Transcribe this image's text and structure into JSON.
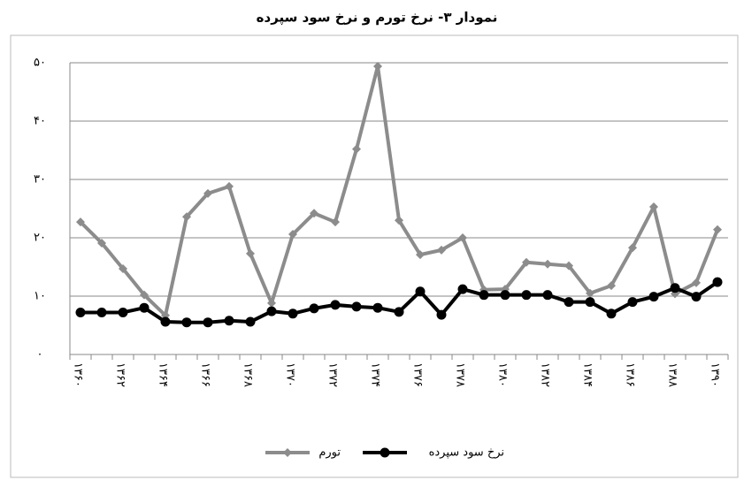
{
  "chart_data": {
    "type": "line",
    "title": "نمودار ۳- نرخ تورم و نرخ سود سپرده",
    "categories": [
      "۱۳۶۰",
      null,
      "۱۳۶۲",
      null,
      "۱۳۶۴",
      null,
      "۱۳۶۶",
      null,
      "۱۳۶۸",
      null,
      "۱۳۷۰",
      null,
      "۱۳۷۲",
      null,
      "۱۳۷۴",
      null,
      "۱۳۷۶",
      null,
      "۱۳۷۸",
      null,
      "۱۳۸۰",
      null,
      "۱۳۸۲",
      null,
      "۱۳۸۴",
      null,
      "۱۳۸۶",
      null,
      "۱۳۸۸",
      null,
      "۱۳۹۰"
    ],
    "series": [
      {
        "name": "تورم",
        "color": "#8c8c8c",
        "marker": "diamond",
        "values": [
          22.7,
          19.1,
          14.7,
          10.2,
          6.7,
          23.6,
          27.6,
          28.8,
          17.3,
          8.8,
          20.6,
          24.2,
          22.7,
          35.2,
          49.4,
          23.0,
          17.1,
          17.9,
          20.0,
          11.1,
          11.2,
          15.8,
          15.5,
          15.2,
          10.5,
          11.8,
          18.3,
          25.3,
          10.4,
          12.3,
          21.4
        ]
      },
      {
        "name": "نرخ سود سپرده",
        "color": "#000000",
        "marker": "circle",
        "values": [
          7.2,
          7.2,
          7.2,
          8.0,
          5.6,
          5.5,
          5.5,
          5.8,
          5.6,
          7.4,
          7.0,
          7.9,
          8.5,
          8.2,
          8.0,
          7.3,
          10.8,
          6.8,
          11.2,
          10.2,
          10.2,
          10.2,
          10.2,
          9.0,
          9.0,
          7.0,
          9.0,
          9.9,
          11.4,
          9.9,
          12.4
        ]
      }
    ],
    "ylim": [
      0,
      50
    ],
    "yticks": [
      {
        "value": 0,
        "label": "۰"
      },
      {
        "value": 10,
        "label": "۱۰"
      },
      {
        "value": 20,
        "label": "۲۰"
      },
      {
        "value": 30,
        "label": "۳۰"
      },
      {
        "value": 40,
        "label": "۴۰"
      },
      {
        "value": 50,
        "label": "۵۰"
      }
    ],
    "grid": true,
    "legend": "bottom"
  }
}
